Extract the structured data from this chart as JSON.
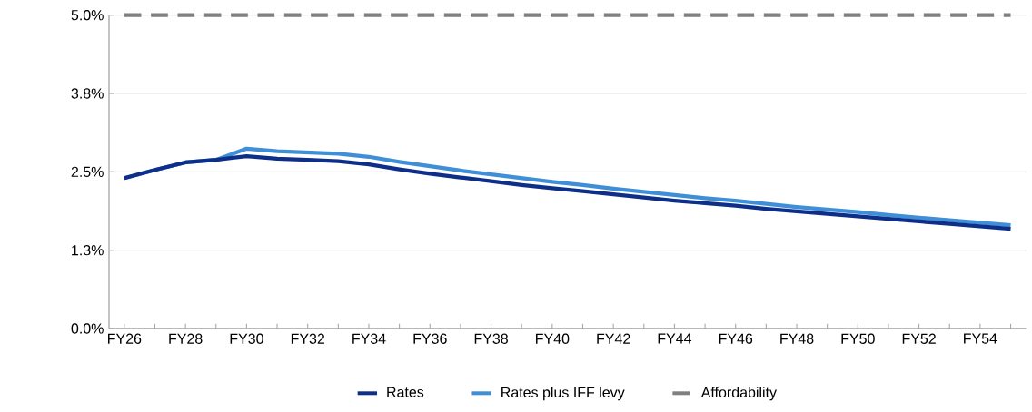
{
  "chart_data": {
    "type": "line",
    "categories": [
      "FY26",
      null,
      "FY28",
      null,
      "FY30",
      null,
      "FY32",
      null,
      "FY34",
      null,
      "FY36",
      null,
      "FY38",
      null,
      "FY40",
      null,
      "FY42",
      null,
      "FY44",
      null,
      "FY46",
      null,
      "FY48",
      null,
      "FY50",
      null,
      "FY52",
      null,
      "FY54",
      null
    ],
    "series": [
      {
        "name": "Rates",
        "color": "#0d2f8a",
        "values": [
          2.4,
          2.53,
          2.65,
          2.69,
          2.75,
          2.71,
          2.69,
          2.67,
          2.62,
          2.54,
          2.47,
          2.41,
          2.35,
          2.29,
          2.24,
          2.19,
          2.14,
          2.09,
          2.04,
          2.0,
          1.96,
          1.91,
          1.87,
          1.83,
          1.79,
          1.75,
          1.71,
          1.67,
          1.63,
          1.59
        ]
      },
      {
        "name": "Rates plus IFF levy",
        "color": "#3f8fd8",
        "values": [
          2.4,
          2.53,
          2.65,
          2.69,
          2.87,
          2.83,
          2.81,
          2.79,
          2.74,
          2.66,
          2.59,
          2.52,
          2.46,
          2.4,
          2.34,
          2.29,
          2.23,
          2.18,
          2.13,
          2.08,
          2.04,
          1.99,
          1.94,
          1.9,
          1.86,
          1.81,
          1.77,
          1.73,
          1.69,
          1.65
        ]
      },
      {
        "name": "Affordability",
        "color": "#808080",
        "line_style": "dashed",
        "values": [
          5.0,
          5.0,
          5.0,
          5.0,
          5.0,
          5.0,
          5.0,
          5.0,
          5.0,
          5.0,
          5.0,
          5.0,
          5.0,
          5.0,
          5.0,
          5.0,
          5.0,
          5.0,
          5.0,
          5.0,
          5.0,
          5.0,
          5.0,
          5.0,
          5.0,
          5.0,
          5.0,
          5.0,
          5.0,
          5.0
        ]
      }
    ],
    "ylim": [
      0,
      5.0
    ],
    "yticks": [
      {
        "value": 0,
        "label": "0.0%"
      },
      {
        "value": 1.25,
        "label": "1.3%"
      },
      {
        "value": 2.5,
        "label": "2.5%"
      },
      {
        "value": 3.75,
        "label": "3.8%"
      },
      {
        "value": 5.0,
        "label": "5.0%"
      }
    ],
    "grid": "y",
    "legend": "bottom",
    "marker": "none"
  }
}
